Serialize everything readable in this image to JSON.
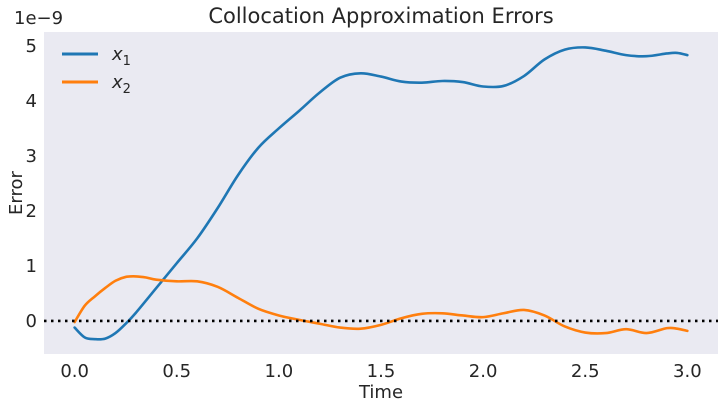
{
  "chart_data": {
    "type": "line",
    "title": "Collocation Approximation Errors",
    "xlabel": "Time",
    "ylabel": "Error",
    "offset_label": "1e−9",
    "xlim": [
      -0.15,
      3.15
    ],
    "ylim": [
      -0.6,
      5.25
    ],
    "xticks": [
      0.0,
      0.5,
      1.0,
      1.5,
      2.0,
      2.5,
      3.0
    ],
    "xtick_labels": [
      "0.0",
      "0.5",
      "1.0",
      "1.5",
      "2.0",
      "2.5",
      "3.0"
    ],
    "yticks": [
      0,
      1,
      2,
      3,
      4,
      5
    ],
    "ytick_labels": [
      "0",
      "1",
      "2",
      "3",
      "4",
      "5"
    ],
    "grid": false,
    "legend_position": "upper-left",
    "reference_line": {
      "y": 0,
      "style": "dotted",
      "color": "#000000"
    },
    "background_color": "#eaeaf2",
    "series": [
      {
        "name": "x",
        "subscript": "1",
        "color": "#1f77b4",
        "x": [
          0.0,
          0.05,
          0.1,
          0.15,
          0.2,
          0.25,
          0.3,
          0.4,
          0.5,
          0.6,
          0.7,
          0.8,
          0.9,
          1.0,
          1.1,
          1.2,
          1.3,
          1.4,
          1.5,
          1.6,
          1.7,
          1.8,
          1.9,
          2.0,
          2.1,
          2.2,
          2.3,
          2.4,
          2.5,
          2.6,
          2.7,
          2.8,
          2.9,
          2.95,
          3.0
        ],
        "y": [
          -0.12,
          -0.3,
          -0.33,
          -0.32,
          -0.22,
          -0.05,
          0.15,
          0.6,
          1.05,
          1.5,
          2.05,
          2.65,
          3.15,
          3.5,
          3.82,
          4.15,
          4.42,
          4.5,
          4.44,
          4.35,
          4.33,
          4.36,
          4.34,
          4.26,
          4.27,
          4.45,
          4.75,
          4.93,
          4.97,
          4.91,
          4.83,
          4.81,
          4.86,
          4.87,
          4.83
        ]
      },
      {
        "name": "x",
        "subscript": "2",
        "color": "#ff7f0e",
        "x": [
          0.0,
          0.05,
          0.1,
          0.15,
          0.2,
          0.25,
          0.3,
          0.35,
          0.4,
          0.5,
          0.6,
          0.7,
          0.8,
          0.9,
          1.0,
          1.1,
          1.2,
          1.3,
          1.4,
          1.5,
          1.6,
          1.7,
          1.8,
          1.9,
          2.0,
          2.1,
          2.2,
          2.3,
          2.4,
          2.5,
          2.6,
          2.7,
          2.8,
          2.9,
          2.95,
          3.0
        ],
        "y": [
          -0.02,
          0.28,
          0.45,
          0.6,
          0.73,
          0.8,
          0.81,
          0.79,
          0.75,
          0.72,
          0.72,
          0.62,
          0.42,
          0.22,
          0.1,
          0.02,
          -0.05,
          -0.12,
          -0.14,
          -0.07,
          0.05,
          0.13,
          0.14,
          0.1,
          0.07,
          0.14,
          0.2,
          0.1,
          -0.1,
          -0.21,
          -0.22,
          -0.15,
          -0.22,
          -0.13,
          -0.14,
          -0.18
        ]
      }
    ]
  }
}
